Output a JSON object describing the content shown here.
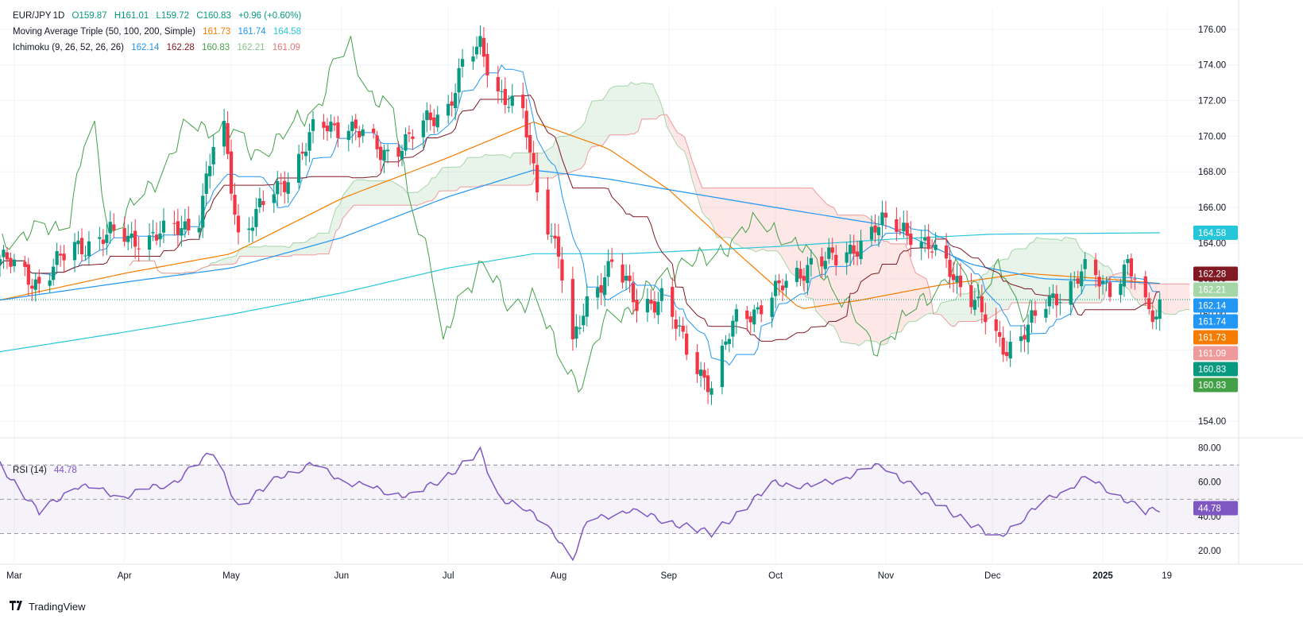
{
  "header": {
    "symbol": "EUR/JPY",
    "interval": "1D",
    "ohlc": {
      "o": "O159.87",
      "h": "H161.01",
      "l": "L159.72",
      "c": "C160.83",
      "chg": "+0.96 (+0.60%)"
    },
    "ma_label": "Moving Average Triple (50, 100, 200, Simple)",
    "ma_values": [
      "161.73",
      "161.74",
      "164.58"
    ],
    "ichimoku_label": "Ichimoku (9, 26, 52, 26, 26)",
    "ichimoku_values": [
      "162.14",
      "162.28",
      "160.83",
      "162.21",
      "161.09"
    ]
  },
  "rsi": {
    "label": "RSI (14)",
    "value": "44.78"
  },
  "brand": "TradingView",
  "colors": {
    "up": "#089981",
    "down": "#f23645",
    "ma50": "#f57c00",
    "ma100": "#2196f3",
    "ma200": "#26c6da",
    "tenkan": "#2196f3",
    "kijun": "#801922",
    "chikou": "#43a047",
    "spanA": "#a5d6a7",
    "spanB": "#ef9a9a",
    "rsi": "#7e57c2"
  },
  "chart_data": [
    {
      "type": "candlestick",
      "title": "EUR/JPY, 1D",
      "y_ticks": [
        154,
        156,
        158,
        160,
        162,
        164,
        166,
        168,
        170,
        172,
        174,
        176
      ],
      "ylim": [
        153.2,
        177.2
      ],
      "x_tick_labels": [
        "Mar",
        "Apr",
        "May",
        "Jun",
        "Jul",
        "Aug",
        "Sep",
        "Oct",
        "Nov",
        "Dec",
        "2025",
        "19"
      ],
      "x_tick_dates": [
        "2024-03-01",
        "2024-04-01",
        "2024-05-01",
        "2024-06-01",
        "2024-07-01",
        "2024-08-01",
        "2024-09-01",
        "2024-10-01",
        "2024-11-01",
        "2024-12-01",
        "2025-01-01",
        "2025-01-19"
      ],
      "current_price": 160.83,
      "anchors": [
        [
          "2024-02-26",
          163.1
        ],
        [
          "2024-03-08",
          161.8
        ],
        [
          "2024-03-18",
          163.8
        ],
        [
          "2024-03-28",
          164.4
        ],
        [
          "2024-04-10",
          164.3
        ],
        [
          "2024-04-22",
          165.5
        ],
        [
          "2024-04-26",
          169.3
        ],
        [
          "2024-04-29",
          170.2
        ],
        [
          "2024-05-03",
          164.5
        ],
        [
          "2024-05-15",
          167.2
        ],
        [
          "2024-05-24",
          170.2
        ],
        [
          "2024-06-03",
          170.8
        ],
        [
          "2024-06-12",
          169.0
        ],
        [
          "2024-06-21",
          170.0
        ],
        [
          "2024-07-01",
          171.8
        ],
        [
          "2024-07-05",
          173.9
        ],
        [
          "2024-07-10",
          175.0
        ],
        [
          "2024-07-15",
          172.7
        ],
        [
          "2024-07-22",
          171.0
        ],
        [
          "2024-07-26",
          167.0
        ],
        [
          "2024-08-01",
          163.5
        ],
        [
          "2024-08-05",
          158.0
        ],
        [
          "2024-08-09",
          160.7
        ],
        [
          "2024-08-16",
          163.0
        ],
        [
          "2024-08-23",
          160.5
        ],
        [
          "2024-08-30",
          161.0
        ],
        [
          "2024-09-06",
          158.0
        ],
        [
          "2024-09-13",
          156.0
        ],
        [
          "2024-09-20",
          159.8
        ],
        [
          "2024-09-27",
          160.5
        ],
        [
          "2024-10-03",
          161.5
        ],
        [
          "2024-10-11",
          163.0
        ],
        [
          "2024-10-18",
          163.0
        ],
        [
          "2024-10-24",
          164.0
        ],
        [
          "2024-10-31",
          165.0
        ],
        [
          "2024-11-06",
          165.0
        ],
        [
          "2024-11-12",
          163.8
        ],
        [
          "2024-11-19",
          162.6
        ],
        [
          "2024-11-25",
          161.0
        ],
        [
          "2024-12-02",
          158.6
        ],
        [
          "2024-12-05",
          158.2
        ],
        [
          "2024-12-11",
          159.2
        ],
        [
          "2024-12-18",
          161.0
        ],
        [
          "2024-12-27",
          162.3
        ],
        [
          "2025-01-03",
          161.6
        ],
        [
          "2025-01-08",
          162.8
        ],
        [
          "2025-01-13",
          160.2
        ],
        [
          "2025-01-16",
          160.0
        ],
        [
          "2025-01-17",
          160.83
        ]
      ],
      "ma_anchors": {
        "50": [
          [
            "2024-02-26",
            160.8
          ],
          [
            "2024-04-01",
            162.3
          ],
          [
            "2024-05-01",
            163.4
          ],
          [
            "2024-06-01",
            166.5
          ],
          [
            "2024-07-01",
            168.8
          ],
          [
            "2024-07-25",
            170.8
          ],
          [
            "2024-08-15",
            169.3
          ],
          [
            "2024-09-01",
            167.0
          ],
          [
            "2024-09-20",
            163.5
          ],
          [
            "2024-10-08",
            160.3
          ],
          [
            "2024-10-25",
            160.8
          ],
          [
            "2024-11-15",
            161.6
          ],
          [
            "2024-12-10",
            162.3
          ],
          [
            "2025-01-01",
            162.0
          ],
          [
            "2025-01-17",
            161.73
          ]
        ],
        "100": [
          [
            "2024-02-26",
            160.8
          ],
          [
            "2024-04-01",
            161.8
          ],
          [
            "2024-05-01",
            162.6
          ],
          [
            "2024-06-01",
            164.3
          ],
          [
            "2024-07-01",
            166.6
          ],
          [
            "2024-07-25",
            168.1
          ],
          [
            "2024-08-15",
            167.6
          ],
          [
            "2024-09-01",
            167.0
          ],
          [
            "2024-10-01",
            166.0
          ],
          [
            "2024-11-01",
            165.0
          ],
          [
            "2024-11-25",
            162.8
          ],
          [
            "2024-12-15",
            162.0
          ],
          [
            "2025-01-17",
            161.74
          ]
        ],
        "200": [
          [
            "2024-02-26",
            157.9
          ],
          [
            "2024-04-01",
            159.0
          ],
          [
            "2024-05-01",
            160.0
          ],
          [
            "2024-06-01",
            161.2
          ],
          [
            "2024-07-01",
            162.6
          ],
          [
            "2024-07-25",
            163.4
          ],
          [
            "2024-08-20",
            163.4
          ],
          [
            "2024-10-01",
            163.8
          ],
          [
            "2024-11-01",
            164.2
          ],
          [
            "2024-12-01",
            164.5
          ],
          [
            "2025-01-17",
            164.58
          ]
        ]
      }
    },
    {
      "type": "line",
      "title": "RSI (14)",
      "y_ticks": [
        20,
        40,
        60,
        80
      ],
      "ylim": [
        13,
        84
      ],
      "bands": [
        30,
        50,
        70
      ],
      "x": [
        "2024-02-26",
        "2024-03-08",
        "2024-03-18",
        "2024-04-01",
        "2024-04-15",
        "2024-04-26",
        "2024-05-03",
        "2024-05-15",
        "2024-05-24",
        "2024-06-03",
        "2024-06-12",
        "2024-06-21",
        "2024-07-01",
        "2024-07-10",
        "2024-07-15",
        "2024-07-22",
        "2024-08-01",
        "2024-08-05",
        "2024-08-09",
        "2024-08-20",
        "2024-08-30",
        "2024-09-13",
        "2024-09-20",
        "2024-10-01",
        "2024-10-11",
        "2024-10-31",
        "2024-11-06",
        "2024-11-19",
        "2024-12-02",
        "2024-12-11",
        "2024-12-18",
        "2024-12-27",
        "2025-01-06",
        "2025-01-13",
        "2025-01-17"
      ],
      "values": [
        70,
        42,
        58,
        52,
        60,
        78,
        45,
        64,
        70,
        60,
        55,
        52,
        64,
        78,
        51,
        46,
        27,
        16,
        36,
        44,
        38,
        30,
        41,
        60,
        57,
        70,
        61,
        43,
        27,
        41,
        52,
        62,
        52,
        42,
        44.78
      ],
      "current_value": 44.78
    }
  ]
}
